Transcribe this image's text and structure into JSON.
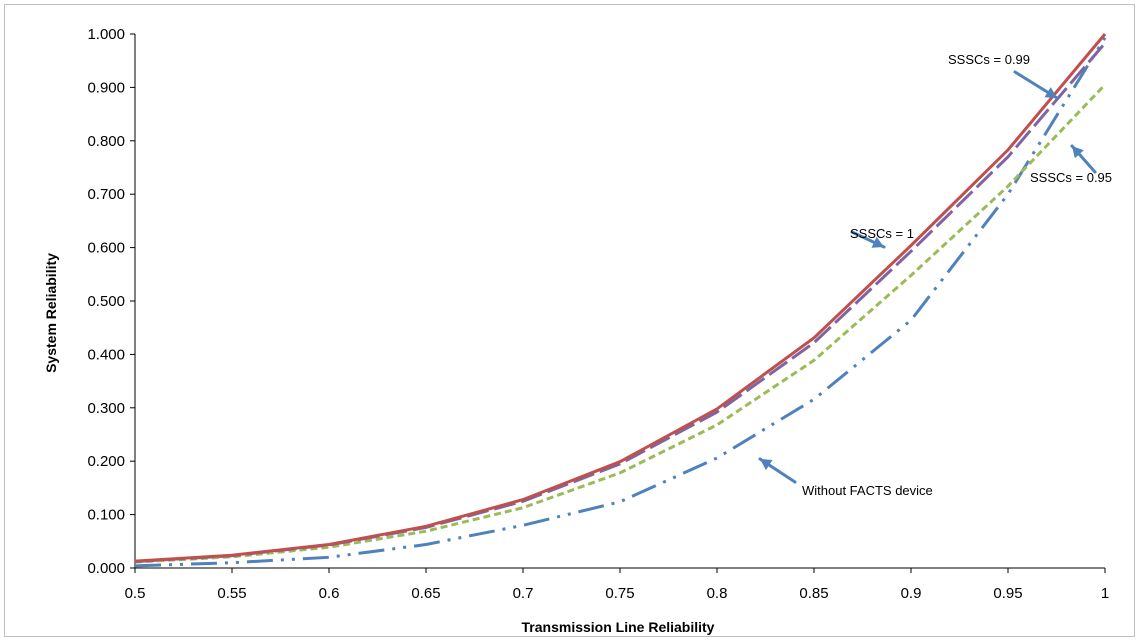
{
  "chart_data": {
    "type": "line",
    "xlabel": "Transmission Line Reliability",
    "ylabel": "System Reliability",
    "x_tick_labels": [
      "0.5",
      "0.55",
      "0.6",
      "0.65",
      "0.7",
      "0.75",
      "0.8",
      "0.85",
      "0.9",
      "0.95",
      "1"
    ],
    "y_tick_labels": [
      "0.000",
      "0.100",
      "0.200",
      "0.300",
      "0.400",
      "0.500",
      "0.600",
      "0.700",
      "0.800",
      "0.900",
      "1.000"
    ],
    "x": [
      0.5,
      0.55,
      0.6,
      0.65,
      0.7,
      0.75,
      0.8,
      0.85,
      0.9,
      0.95,
      1
    ],
    "ylim": [
      0,
      1
    ],
    "grid": false,
    "legend": "none",
    "series": [
      {
        "name": "SSSCs = 1",
        "color": "#c0504d",
        "dash": "solid",
        "values": [
          0.013,
          0.024,
          0.044,
          0.078,
          0.128,
          0.199,
          0.298,
          0.431,
          0.604,
          0.783,
          1.0
        ]
      },
      {
        "name": "SSSCs = 0.99",
        "color": "#8064a2",
        "dash": "longdash",
        "values": [
          0.012,
          0.023,
          0.043,
          0.076,
          0.125,
          0.195,
          0.292,
          0.422,
          0.593,
          0.77,
          0.983
        ]
      },
      {
        "name": "SSSCs = 0.95",
        "color": "#9bbb59",
        "dash": "shortdash",
        "values": [
          0.011,
          0.021,
          0.039,
          0.069,
          0.113,
          0.178,
          0.268,
          0.389,
          0.548,
          0.715,
          0.905
        ]
      },
      {
        "name": "Without FACTS device",
        "color": "#4f81bd",
        "dash": "dashdotdot",
        "values": [
          0.004,
          0.01,
          0.02,
          0.044,
          0.08,
          0.124,
          0.206,
          0.316,
          0.464,
          0.7,
          0.993
        ]
      }
    ],
    "annotations": [
      {
        "text": "SSSCs = 1",
        "series_index": 0
      },
      {
        "text": "SSSCs = 0.99",
        "series_index": 1
      },
      {
        "text": "SSSCs = 0.95",
        "series_index": 2
      },
      {
        "text": "Without FACTS device",
        "series_index": 3
      }
    ],
    "colors": {
      "arrow": "#4f81bd",
      "axis": "#000000",
      "frame": "#bfbfbf"
    }
  }
}
